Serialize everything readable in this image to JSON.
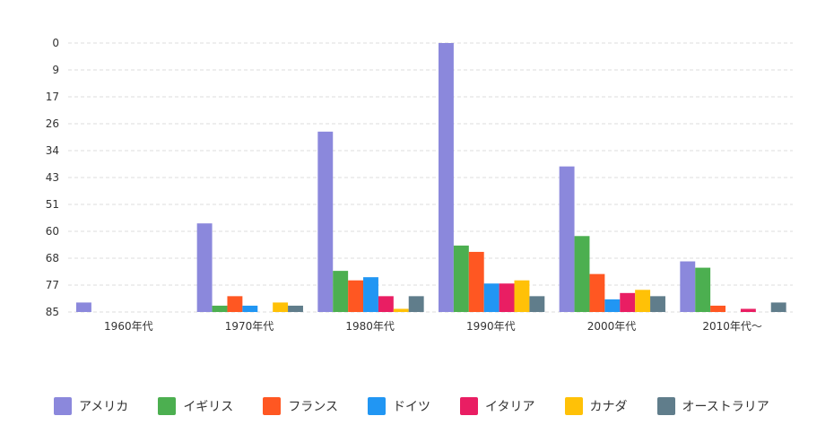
{
  "chart_data": {
    "type": "bar",
    "categories": [
      "1960年代",
      "1970年代",
      "1980年代",
      "1990年代",
      "2000年代",
      "2010年代〜"
    ],
    "ylim": [
      0,
      85
    ],
    "y_axis_inverted": true,
    "yticks": [
      "0",
      "9",
      "17",
      "26",
      "34",
      "43",
      "51",
      "60",
      "68",
      "77",
      "85"
    ],
    "grid": true,
    "legend_position": "bottom",
    "series": [
      {
        "name": "アメリカ",
        "color": "#8b88dc",
        "values": [
          3,
          28,
          57,
          85,
          46,
          16
        ]
      },
      {
        "name": "イギリス",
        "color": "#4caf50",
        "values": [
          0,
          2,
          13,
          21,
          24,
          14
        ]
      },
      {
        "name": "フランス",
        "color": "#ff5722",
        "values": [
          0,
          5,
          10,
          19,
          12,
          2
        ]
      },
      {
        "name": "ドイツ",
        "color": "#2196f3",
        "values": [
          0,
          2,
          11,
          9,
          4,
          0
        ]
      },
      {
        "name": "イタリア",
        "color": "#e91e63",
        "values": [
          0,
          0,
          5,
          9,
          6,
          1
        ]
      },
      {
        "name": "カナダ",
        "color": "#ffc107",
        "values": [
          0,
          3,
          1,
          10,
          7,
          0
        ]
      },
      {
        "name": "オーストラリア",
        "color": "#607d8b",
        "values": [
          0,
          2,
          5,
          5,
          5,
          3
        ]
      }
    ]
  }
}
